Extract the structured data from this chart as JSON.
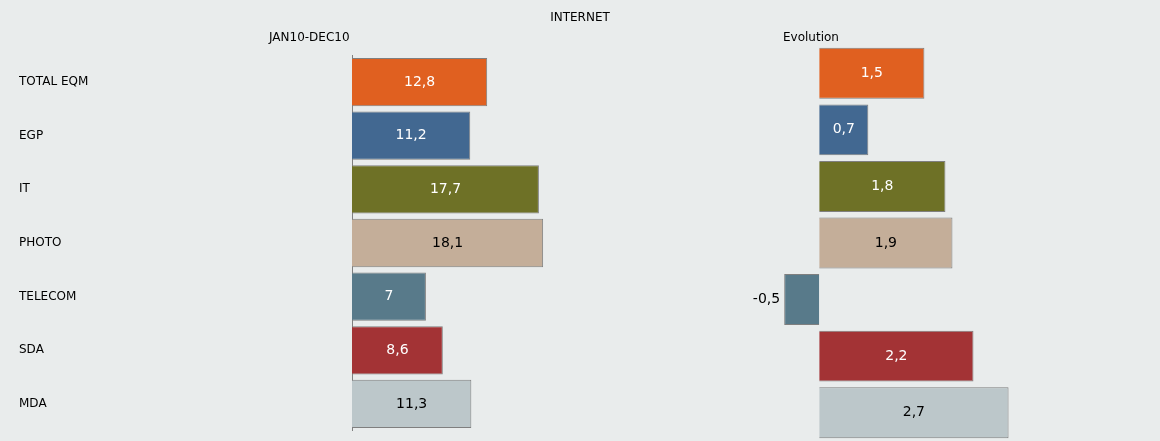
{
  "chart_data": [
    {
      "type": "other",
      "title": "INTERNET"
    },
    {
      "type": "bar",
      "orientation": "horizontal",
      "title": "JAN10-DEC10",
      "categories": [
        "TOTAL EQM",
        "EGP",
        "IT",
        "PHOTO",
        "TELECOM",
        "SDA",
        "MDA"
      ],
      "values": [
        12.8,
        11.2,
        17.7,
        18.1,
        7,
        8.6,
        11.3
      ],
      "value_labels": [
        "12,8",
        "11,2",
        "17,7",
        "18,1",
        "7",
        "8,6",
        "11,3"
      ],
      "colors": [
        "#e06020",
        "#426891",
        "#6e7126",
        "#c4ae99",
        "#587a8a",
        "#a33335",
        "#bcc7ca"
      ],
      "tick_labels": "y",
      "grid": false,
      "legend": false
    },
    {
      "type": "bar",
      "orientation": "horizontal",
      "title": "Evolution",
      "categories": [
        null,
        null,
        null,
        null,
        null,
        null,
        null
      ],
      "values": [
        1.5,
        0.7,
        1.8,
        1.9,
        -0.5,
        2.2,
        2.7
      ],
      "value_labels": [
        "1,5",
        "0,7",
        "1,8",
        "1,9",
        "-0,5",
        "2,2",
        "2,7"
      ],
      "colors": [
        "#e06020",
        "#426891",
        "#6e7126",
        "#c4ae99",
        "#587a8a",
        "#a33335",
        "#bcc7ca"
      ],
      "tick_labels": false,
      "grid": false,
      "legend": false
    }
  ]
}
